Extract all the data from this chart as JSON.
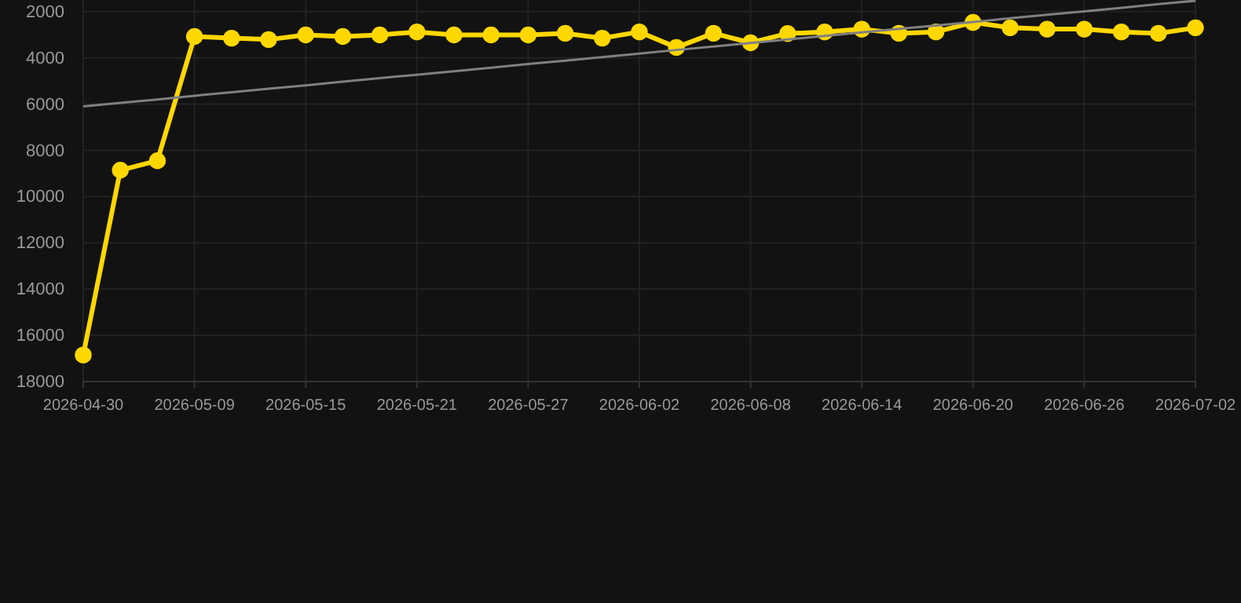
{
  "chart_data": {
    "type": "line",
    "categories": [
      "2026-04-30",
      null,
      null,
      "2026-05-09",
      null,
      null,
      "2026-05-15",
      null,
      null,
      "2026-05-21",
      null,
      null,
      "2026-05-27",
      null,
      null,
      "2026-06-02",
      null,
      null,
      "2026-06-08",
      null,
      null,
      "2026-06-14",
      null,
      null,
      "2026-06-20",
      null,
      null,
      "2026-06-26",
      null,
      null,
      "2026-07-02"
    ],
    "series": [
      {
        "color": "#ffd700",
        "marker": "circle",
        "values": [
          16850,
          8860,
          8450,
          3080,
          3150,
          3210,
          3010,
          3080,
          3010,
          2880,
          3010,
          3010,
          3010,
          2940,
          3150,
          2880,
          3550,
          2940,
          3350,
          2950,
          2880,
          2760,
          2940,
          2880,
          2470,
          2700,
          2760,
          2760,
          2880,
          2940,
          2700
        ]
      },
      {
        "color": "#808080",
        "marker": "none",
        "values": [
          6100,
          5950,
          5800,
          5640,
          5490,
          5340,
          5190,
          5030,
          4880,
          4730,
          4580,
          4430,
          4270,
          4120,
          3970,
          3820,
          3660,
          3510,
          3360,
          3210,
          3050,
          2900,
          2750,
          2600,
          2450,
          2290,
          2140,
          1990,
          1840,
          1680,
          1530
        ]
      }
    ],
    "ylim": [
      18000,
      1500
    ],
    "yticks": [
      2000,
      4000,
      6000,
      8000,
      10000,
      12000,
      14000,
      16000,
      18000
    ],
    "grid": true,
    "line_style": "solid"
  }
}
